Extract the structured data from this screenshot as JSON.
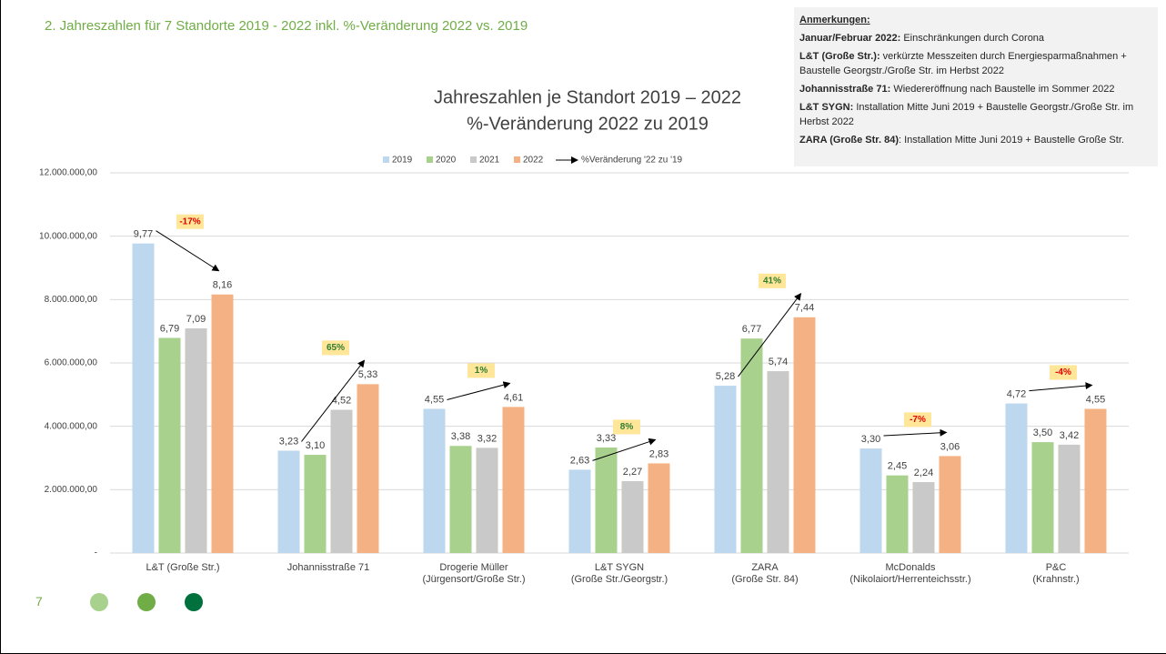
{
  "slide": {
    "title": "2. Jahreszahlen für 7 Standorte 2019 - 2022 inkl. %-Veränderung 2022 vs. 2019",
    "page_number": "7"
  },
  "notes": {
    "heading": "Anmerkungen:",
    "items": [
      {
        "bold": "Januar/Februar 2022:",
        "text": " Einschränkungen durch Corona"
      },
      {
        "bold": "L&T (Große Str.):",
        "text": " verkürzte Messzeiten durch Energiesparmaßnahmen + Baustelle Georgstr./Große Str. im Herbst 2022"
      },
      {
        "bold": "Johannisstraße 71:",
        "text": " Wiedereröffnung nach Baustelle im Sommer 2022"
      },
      {
        "bold": "L&T SYGN:",
        "text": " Installation Mitte Juni 2019 + Baustelle Georgstr./Große Str. im Herbst 2022"
      },
      {
        "bold": "ZARA (Große Str. 84)",
        "text": ": Installation Mitte Juni 2019 + Baustelle Große Str."
      }
    ]
  },
  "chart_data": {
    "type": "bar",
    "title": "Jahreszahlen je Standort 2019 – 2022",
    "subtitle": "%-Veränderung 2022 zu 2019",
    "categories": [
      "L&T (Große Str.)",
      "Johannisstraße 71",
      "Drogerie Müller\n(Jürgensort/Große Str.)",
      "L&T SYGN\n(Große Str./Georgstr.)",
      "ZARA\n(Große Str. 84)",
      "McDonalds\n(Nikolaiort/Herrenteichsstr.)",
      "P&C\n(Krahnstr.)"
    ],
    "series": [
      {
        "name": "2019",
        "color": "#bdd7ee",
        "values": [
          9770000,
          3230000,
          4550000,
          2630000,
          5280000,
          3300000,
          4720000
        ],
        "value_labels": [
          "9,77",
          "3,23",
          "4,55",
          "2,63",
          "5,28",
          "3,30",
          "4,72"
        ]
      },
      {
        "name": "2020",
        "color": "#a9d18e",
        "values": [
          6790000,
          3100000,
          3380000,
          3330000,
          6770000,
          2450000,
          3500000
        ],
        "value_labels": [
          "6,79",
          "3,10",
          "3,38",
          "3,33",
          "6,77",
          "2,45",
          "3,50"
        ]
      },
      {
        "name": "2021",
        "color": "#c9c9c9",
        "values": [
          7090000,
          4520000,
          3320000,
          2270000,
          5740000,
          2240000,
          3420000
        ],
        "value_labels": [
          "7,09",
          "4,52",
          "3,32",
          "2,27",
          "5,74",
          "2,24",
          "3,42"
        ]
      },
      {
        "name": "2022",
        "color": "#f4b183",
        "values": [
          8160000,
          5330000,
          4610000,
          2830000,
          7440000,
          3060000,
          4550000
        ],
        "value_labels": [
          "8,16",
          "5,33",
          "4,61",
          "2,83",
          "7,44",
          "3,06",
          "4,55"
        ]
      }
    ],
    "change": {
      "name": "%Veränderung '22 zu '19",
      "values": [
        -17,
        65,
        1,
        8,
        41,
        -7,
        -4
      ],
      "value_labels": [
        "-17%",
        "65%",
        "1%",
        "8%",
        "41%",
        "-7%",
        "-4%"
      ]
    },
    "ylim": [
      0,
      12000000
    ],
    "yticks": [
      {
        "value": 0,
        "label": "-"
      },
      {
        "value": 2000000,
        "label": "2.000.000,00"
      },
      {
        "value": 4000000,
        "label": "4.000.000,00"
      },
      {
        "value": 6000000,
        "label": "6.000.000,00"
      },
      {
        "value": 8000000,
        "label": "8.000.000,00"
      },
      {
        "value": 10000000,
        "label": "10.000.000,00"
      },
      {
        "value": 12000000,
        "label": "12.000.000,00"
      }
    ],
    "grid": true
  }
}
